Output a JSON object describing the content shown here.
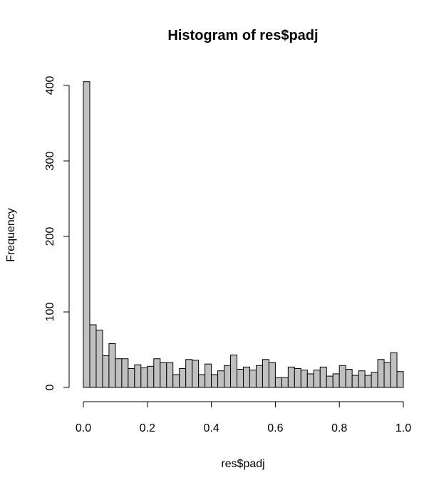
{
  "chart_data": {
    "type": "bar",
    "title": "Histogram of res$padj",
    "xlabel": "res$padj",
    "ylabel": "Frequency",
    "x_bin_width": 0.02,
    "x_bins_start": 0.0,
    "xlim": [
      0,
      1
    ],
    "ylim": [
      0,
      400
    ],
    "x_ticks": [
      "0.0",
      "0.2",
      "0.4",
      "0.6",
      "0.8",
      "1.0"
    ],
    "y_ticks": [
      "0",
      "100",
      "200",
      "300",
      "400"
    ],
    "values": [
      405,
      83,
      76,
      42,
      58,
      38,
      38,
      25,
      30,
      26,
      28,
      38,
      33,
      33,
      17,
      25,
      37,
      36,
      17,
      31,
      17,
      22,
      29,
      43,
      24,
      27,
      23,
      29,
      37,
      33,
      13,
      13,
      27,
      25,
      23,
      18,
      23,
      27,
      15,
      18,
      29,
      24,
      16,
      22,
      16,
      20,
      37,
      33,
      46,
      21
    ],
    "bar_color": "#c0c0c0",
    "grid": false
  }
}
